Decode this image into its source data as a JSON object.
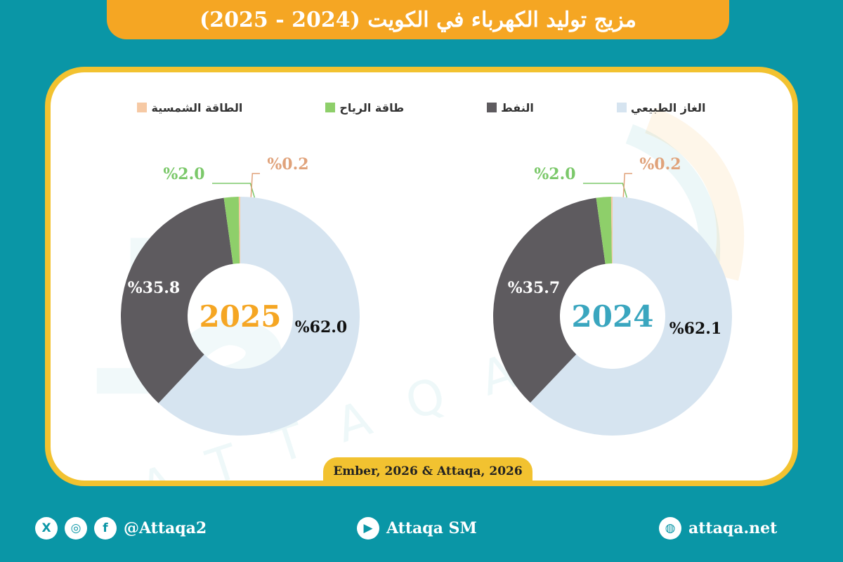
{
  "title": "مزيج توليد الكهرباء في الكويت (2024 - 2025)",
  "colors": {
    "natural_gas": "#d6e4f0",
    "oil": "#5e5b5f",
    "wind": "#8ecf6a",
    "solar": "#f6c9a4",
    "year_2024": "#3aa6bf",
    "year_2025": "#f5a623",
    "wind_label": "#7bc86a",
    "solar_label": "#e0a27a"
  },
  "legend": [
    {
      "key": "natural_gas",
      "label": "الغاز الطبيعي"
    },
    {
      "key": "oil",
      "label": "النفط"
    },
    {
      "key": "wind",
      "label": "طاقة الرياح"
    },
    {
      "key": "solar",
      "label": "الطاقة الشمسية"
    }
  ],
  "chart_data": [
    {
      "type": "pie",
      "center_label": "2025",
      "categories": [
        "الغاز الطبيعي",
        "النفط",
        "طاقة الرياح",
        "الطاقة الشمسية"
      ],
      "values": [
        62.0,
        35.8,
        2.0,
        0.2
      ],
      "labels": [
        "%62.0",
        "%35.8",
        "%2.0",
        "%0.2"
      ]
    },
    {
      "type": "pie",
      "center_label": "2024",
      "categories": [
        "الغاز الطبيعي",
        "النفط",
        "طاقة الرياح",
        "الطاقة الشمسية"
      ],
      "values": [
        62.1,
        35.7,
        2.0,
        0.2
      ],
      "labels": [
        "%62.1",
        "%35.7",
        "%2.0",
        "%0.2"
      ]
    }
  ],
  "source": "Ember, 2026 & Attaqa, 2026",
  "logo": {
    "arabic": "الطاقة",
    "latin": "ATTAQA"
  },
  "footer": {
    "social": "@Attaqa2",
    "youtube": "Attaqa SM",
    "website": "attaqa.net"
  }
}
